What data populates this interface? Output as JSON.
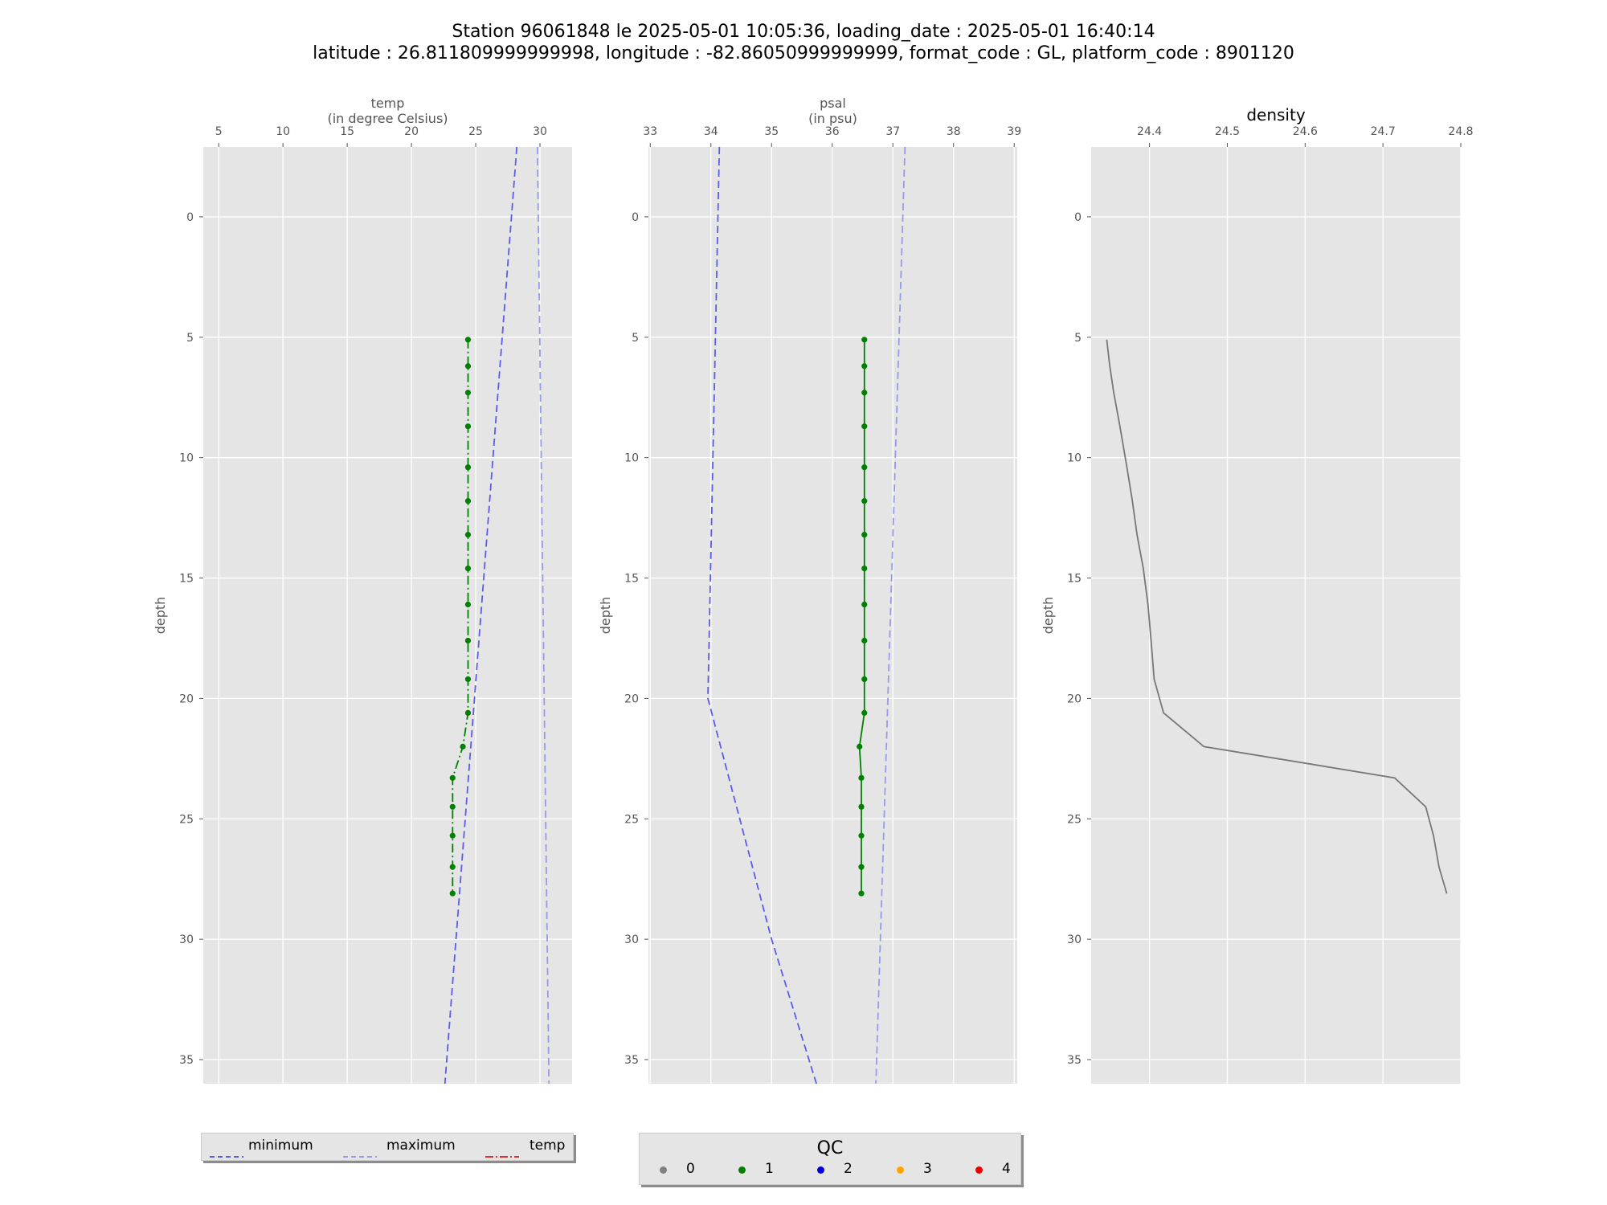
{
  "title": {
    "line1": "Station 96061848 le 2025-05-01 10:05:36, loading_date : 2025-05-01 16:40:14",
    "line2": "latitude : 26.811809999999998, longitude : -82.86050999999999, format_code : GL, platform_code : 8901120"
  },
  "colors": {
    "background": "#e5e5e5",
    "grid": "#ffffff",
    "minimum": "#5c5ce6",
    "maximum": "#9999ee",
    "qc1": "#008000",
    "density": "#777777"
  },
  "chart_data": [
    {
      "type": "line",
      "title": "temp",
      "title_sub": "(in degree Celsius)",
      "ylabel": "depth",
      "xlim": [
        3.8,
        32.5
      ],
      "ylim": [
        36.0,
        -2.9
      ],
      "xticks": [
        5,
        10,
        15,
        20,
        25,
        30
      ],
      "yticks": [
        0,
        5,
        10,
        15,
        20,
        25,
        30,
        35
      ],
      "grid": true,
      "series": [
        {
          "name": "minimum",
          "style": "dashed",
          "color": "#5c5ce6",
          "points": [
            [
              28.2,
              -2.9
            ],
            [
              22.6,
              36.0
            ]
          ]
        },
        {
          "name": "maximum",
          "style": "dashed",
          "color": "#9999ee",
          "points": [
            [
              29.8,
              -2.9
            ],
            [
              30.7,
              36.0
            ]
          ]
        },
        {
          "name": "temp",
          "style": "dashdot",
          "color": "#008000",
          "markers": true,
          "points": [
            [
              24.4,
              5.1
            ],
            [
              24.4,
              6.2
            ],
            [
              24.4,
              7.3
            ],
            [
              24.4,
              8.7
            ],
            [
              24.4,
              10.4
            ],
            [
              24.4,
              11.8
            ],
            [
              24.4,
              13.2
            ],
            [
              24.4,
              14.6
            ],
            [
              24.4,
              16.1
            ],
            [
              24.4,
              17.6
            ],
            [
              24.4,
              19.2
            ],
            [
              24.4,
              20.6
            ],
            [
              24.0,
              22.0
            ],
            [
              23.2,
              23.3
            ],
            [
              23.2,
              24.5
            ],
            [
              23.2,
              25.7
            ],
            [
              23.2,
              27.0
            ],
            [
              23.2,
              28.1
            ]
          ]
        }
      ]
    },
    {
      "type": "line",
      "title": "psal",
      "title_sub": "(in psu)",
      "ylabel": "depth",
      "xlim": [
        32.97,
        39.05
      ],
      "ylim": [
        36.0,
        -2.9
      ],
      "xticks": [
        33,
        34,
        35,
        36,
        37,
        38,
        39
      ],
      "yticks": [
        0,
        5,
        10,
        15,
        20,
        25,
        30,
        35
      ],
      "grid": true,
      "series": [
        {
          "name": "minimum",
          "style": "dashed",
          "color": "#5c5ce6",
          "points": [
            [
              34.14,
              -2.9
            ],
            [
              33.95,
              20.0
            ],
            [
              35.0,
              30.0
            ],
            [
              35.74,
              36.0
            ]
          ]
        },
        {
          "name": "maximum",
          "style": "dashed",
          "color": "#9999ee",
          "points": [
            [
              37.2,
              -2.9
            ],
            [
              36.72,
              36.0
            ]
          ]
        },
        {
          "name": "psal",
          "style": "solid",
          "color": "#008000",
          "markers": true,
          "points": [
            [
              36.53,
              5.1
            ],
            [
              36.53,
              6.2
            ],
            [
              36.53,
              7.3
            ],
            [
              36.53,
              8.7
            ],
            [
              36.53,
              10.4
            ],
            [
              36.53,
              11.8
            ],
            [
              36.53,
              13.2
            ],
            [
              36.53,
              14.6
            ],
            [
              36.53,
              16.1
            ],
            [
              36.53,
              17.6
            ],
            [
              36.53,
              19.2
            ],
            [
              36.53,
              20.6
            ],
            [
              36.45,
              22.0
            ],
            [
              36.48,
              23.3
            ],
            [
              36.48,
              24.5
            ],
            [
              36.48,
              25.7
            ],
            [
              36.48,
              27.0
            ],
            [
              36.48,
              28.1
            ]
          ]
        }
      ]
    },
    {
      "type": "line",
      "title": "density",
      "title_sub": "",
      "ylabel": "depth",
      "xlim": [
        24.325,
        24.8
      ],
      "ylim": [
        36.0,
        -2.9
      ],
      "xticks": [
        24.4,
        24.5,
        24.6,
        24.7,
        24.8
      ],
      "yticks": [
        0,
        5,
        10,
        15,
        20,
        25,
        30,
        35
      ],
      "grid": true,
      "series": [
        {
          "name": "density",
          "style": "solid",
          "color": "#777777",
          "markers": false,
          "points": [
            [
              24.345,
              5.1
            ],
            [
              24.349,
              6.2
            ],
            [
              24.354,
              7.3
            ],
            [
              24.362,
              8.7
            ],
            [
              24.371,
              10.4
            ],
            [
              24.378,
              11.8
            ],
            [
              24.384,
              13.2
            ],
            [
              24.392,
              14.6
            ],
            [
              24.398,
              16.1
            ],
            [
              24.402,
              17.6
            ],
            [
              24.406,
              19.2
            ],
            [
              24.418,
              20.6
            ],
            [
              24.47,
              22.0
            ],
            [
              24.715,
              23.3
            ],
            [
              24.755,
              24.5
            ],
            [
              24.765,
              25.7
            ],
            [
              24.772,
              27.0
            ],
            [
              24.782,
              28.1
            ]
          ]
        }
      ]
    }
  ],
  "legend_lines": {
    "items": [
      {
        "label": "minimum",
        "style": "dashed",
        "color": "#5c5ce6"
      },
      {
        "label": "maximum",
        "style": "dashed",
        "color": "#9999ee"
      },
      {
        "label": "temp",
        "style": "dashdot",
        "color": "#e03030"
      }
    ]
  },
  "legend_qc": {
    "title": "QC",
    "items": [
      {
        "label": "0",
        "color": "#808080"
      },
      {
        "label": "1",
        "color": "#008000"
      },
      {
        "label": "2",
        "color": "#0000dd"
      },
      {
        "label": "3",
        "color": "#ffa500"
      },
      {
        "label": "4",
        "color": "#ee0000"
      }
    ]
  }
}
